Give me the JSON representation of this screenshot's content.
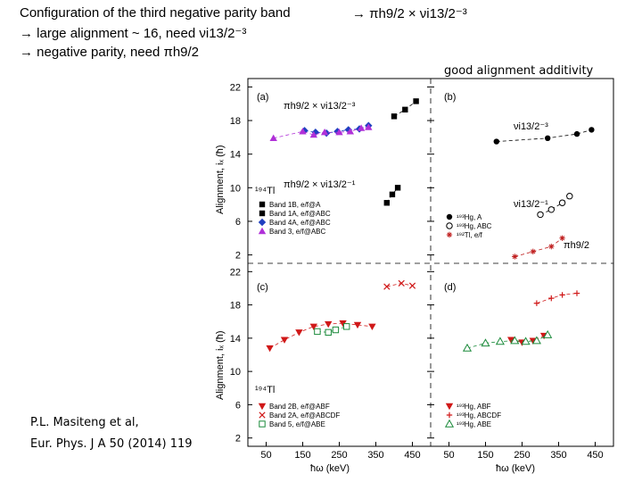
{
  "slide": {
    "heading_line1": "Configuration of the third negative parity band",
    "heading_line2": "→ large alignment ~ 16, need νi13/2⁻³",
    "heading_line3": "→ negative parity, need πh9/2",
    "heading_right": "→ πh9/2 × νi13/2⁻³",
    "good_alignment": "good alignment additivity",
    "citation_line1": "P.L. Masiteng et al,",
    "citation_line2": "Eur. Phys. J A 50 (2014) 119"
  },
  "figure": {
    "ylabel_top": "Alignment, iₓ (ħ)",
    "ylabel_bottom": "Alignment, iₓ (ħ)",
    "xlabel_left": "ħω (keV)",
    "xlabel_right": "ħω (keV)",
    "panel_a_label": "(a)",
    "panel_b_label": "(b)",
    "panel_c_label": "(c)",
    "panel_d_label": "(d)",
    "nucleus_a": "¹⁹⁴Tl",
    "nucleus_c": "¹⁹⁴Tl",
    "ann_a1": "πh9/2 × νi13/2⁻³",
    "ann_a2": "πh9/2 × νi13/2⁻¹",
    "ann_b1": "νi13/2⁻³",
    "ann_b2": "νi13/2⁻¹",
    "ann_b3": "πh9/2"
  },
  "chart_data": [
    {
      "type": "scatter",
      "panel": "a",
      "xlim": [
        0,
        500
      ],
      "ylim": [
        1,
        23
      ],
      "xticks": [
        50,
        150,
        250,
        350,
        450
      ],
      "yticks": [
        2,
        6,
        10,
        14,
        18,
        22
      ],
      "legend_position": "bottom-left",
      "series": [
        {
          "name": "Band 1B, e/f@A",
          "color": "#000000",
          "marker": "square",
          "x": [
            380,
            395,
            410
          ],
          "y": [
            8.2,
            9.2,
            10.0
          ]
        },
        {
          "name": "Band 1A, e/f@ABC",
          "color": "#000000",
          "marker": "square",
          "x": [
            400,
            430,
            460
          ],
          "y": [
            18.5,
            19.3,
            20.3
          ]
        },
        {
          "name": "Band 4A, e/f@ABC",
          "color": "#1f3fc0",
          "marker": "diamond",
          "x": [
            155,
            185,
            215,
            245,
            275,
            305,
            330
          ],
          "y": [
            16.8,
            16.6,
            16.5,
            16.7,
            16.9,
            17.0,
            17.4
          ]
        },
        {
          "name": "Band 3, e/f@ABC",
          "color": "#b030d8",
          "marker": "triangle",
          "x": [
            70,
            150,
            180,
            210,
            250,
            280,
            310,
            330
          ],
          "y": [
            15.9,
            16.7,
            16.3,
            16.6,
            16.6,
            16.7,
            17.1,
            17.2
          ]
        }
      ]
    },
    {
      "type": "scatter",
      "panel": "b",
      "xlim": [
        0,
        500
      ],
      "ylim": [
        1,
        23
      ],
      "xticks": [
        50,
        150,
        250,
        350,
        450
      ],
      "yticks": [
        2,
        6,
        10,
        14,
        18,
        22
      ],
      "legend_position": "bottom-left",
      "series": [
        {
          "name": "¹⁹³Hg, A",
          "color": "#000000",
          "marker": "circle",
          "x": [
            180,
            320,
            400,
            440
          ],
          "y": [
            15.5,
            15.9,
            16.4,
            16.9
          ]
        },
        {
          "name": "¹⁹³Hg, ABC",
          "color": "#000000",
          "marker": "open-circle",
          "x": [
            300,
            330,
            360,
            380
          ],
          "y": [
            6.8,
            7.4,
            8.2,
            9.0
          ]
        },
        {
          "name": "¹⁹²Tl, e/f",
          "color": "#c02020",
          "marker": "star",
          "x": [
            230,
            280,
            330,
            360
          ],
          "y": [
            1.8,
            2.4,
            3.0,
            4.0
          ]
        }
      ]
    },
    {
      "type": "scatter",
      "panel": "c",
      "xlim": [
        0,
        500
      ],
      "ylim": [
        1,
        23
      ],
      "xticks": [
        50,
        150,
        250,
        350,
        450
      ],
      "yticks": [
        2,
        6,
        10,
        14,
        18,
        22
      ],
      "legend_position": "bottom-left",
      "series": [
        {
          "name": "Band 2B, e/f@ABF",
          "color": "#d01818",
          "marker": "triangle-down",
          "x": [
            60,
            100,
            140,
            180,
            220,
            260,
            300,
            340
          ],
          "y": [
            12.8,
            13.8,
            14.7,
            15.4,
            15.7,
            15.8,
            15.6,
            15.4
          ]
        },
        {
          "name": "Band 2A, e/f@ABCDF",
          "color": "#d01818",
          "marker": "x",
          "x": [
            380,
            420,
            450
          ],
          "y": [
            20.2,
            20.6,
            20.3
          ]
        },
        {
          "name": "Band 5, e/f@ABE",
          "color": "#1a8a3a",
          "marker": "open-square",
          "x": [
            190,
            220,
            240,
            270
          ],
          "y": [
            14.8,
            14.7,
            15.0,
            15.4
          ]
        }
      ]
    },
    {
      "type": "scatter",
      "panel": "d",
      "xlim": [
        0,
        500
      ],
      "ylim": [
        1,
        23
      ],
      "xticks": [
        50,
        150,
        250,
        350,
        450
      ],
      "yticks": [
        2,
        6,
        10,
        14,
        18,
        22
      ],
      "legend_position": "bottom-left",
      "series": [
        {
          "name": "¹⁹³Hg, ABF",
          "color": "#d01818",
          "marker": "triangle-down",
          "x": [
            220,
            250,
            280,
            310
          ],
          "y": [
            13.8,
            13.5,
            13.7,
            14.3
          ]
        },
        {
          "name": "¹⁹³Hg, ABCDF",
          "color": "#d01818",
          "marker": "plus",
          "x": [
            290,
            330,
            360,
            400
          ],
          "y": [
            18.2,
            18.8,
            19.2,
            19.4
          ]
        },
        {
          "name": "¹⁹³Hg, ABE",
          "color": "#1a8a3a",
          "marker": "open-triangle",
          "x": [
            100,
            150,
            190,
            230,
            260,
            290,
            320
          ],
          "y": [
            12.8,
            13.4,
            13.6,
            13.7,
            13.6,
            13.7,
            14.4
          ]
        }
      ]
    }
  ]
}
